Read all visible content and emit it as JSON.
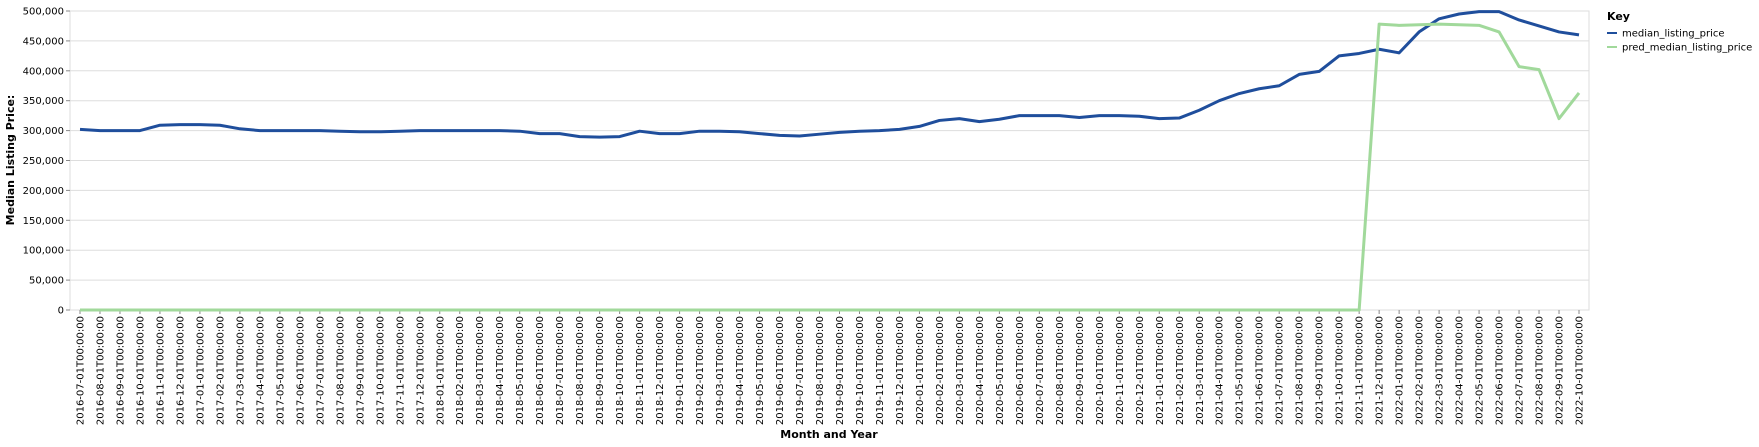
{
  "chart_data": {
    "type": "line",
    "x_label": "Month and Year",
    "y_label": "Median Listing Price:",
    "legend_title": "Key",
    "legend": "right",
    "grid": true,
    "categories": [
      "2016-07-01T00:00:00",
      "2016-08-01T00:00:00",
      "2016-09-01T00:00:00",
      "2016-10-01T00:00:00",
      "2016-11-01T00:00:00",
      "2016-12-01T00:00:00",
      "2017-01-01T00:00:00",
      "2017-02-01T00:00:00",
      "2017-03-01T00:00:00",
      "2017-04-01T00:00:00",
      "2017-05-01T00:00:00",
      "2017-06-01T00:00:00",
      "2017-07-01T00:00:00",
      "2017-08-01T00:00:00",
      "2017-09-01T00:00:00",
      "2017-10-01T00:00:00",
      "2017-11-01T00:00:00",
      "2017-12-01T00:00:00",
      "2018-01-01T00:00:00",
      "2018-02-01T00:00:00",
      "2018-03-01T00:00:00",
      "2018-04-01T00:00:00",
      "2018-05-01T00:00:00",
      "2018-06-01T00:00:00",
      "2018-07-01T00:00:00",
      "2018-08-01T00:00:00",
      "2018-09-01T00:00:00",
      "2018-10-01T00:00:00",
      "2018-11-01T00:00:00",
      "2018-12-01T00:00:00",
      "2019-01-01T00:00:00",
      "2019-02-01T00:00:00",
      "2019-03-01T00:00:00",
      "2019-04-01T00:00:00",
      "2019-05-01T00:00:00",
      "2019-06-01T00:00:00",
      "2019-07-01T00:00:00",
      "2019-08-01T00:00:00",
      "2019-09-01T00:00:00",
      "2019-10-01T00:00:00",
      "2019-11-01T00:00:00",
      "2019-12-01T00:00:00",
      "2020-01-01T00:00:00",
      "2020-02-01T00:00:00",
      "2020-03-01T00:00:00",
      "2020-04-01T00:00:00",
      "2020-05-01T00:00:00",
      "2020-06-01T00:00:00",
      "2020-07-01T00:00:00",
      "2020-08-01T00:00:00",
      "2020-09-01T00:00:00",
      "2020-10-01T00:00:00",
      "2020-11-01T00:00:00",
      "2020-12-01T00:00:00",
      "2021-01-01T00:00:00",
      "2021-02-01T00:00:00",
      "2021-03-01T00:00:00",
      "2021-04-01T00:00:00",
      "2021-05-01T00:00:00",
      "2021-06-01T00:00:00",
      "2021-07-01T00:00:00",
      "2021-08-01T00:00:00",
      "2021-09-01T00:00:00",
      "2021-10-01T00:00:00",
      "2021-11-01T00:00:00",
      "2021-12-01T00:00:00",
      "2022-01-01T00:00:00",
      "2022-02-01T00:00:00",
      "2022-03-01T00:00:00",
      "2022-04-01T00:00:00",
      "2022-05-01T00:00:00",
      "2022-06-01T00:00:00",
      "2022-07-01T00:00:00",
      "2022-08-01T00:00:00",
      "2022-09-01T00:00:00",
      "2022-10-01T00:00:00"
    ],
    "series": [
      {
        "name": "median_listing_price",
        "color": "#1f4e9c",
        "values": [
          302000,
          300000,
          300000,
          300000,
          309000,
          310000,
          310000,
          309000,
          303000,
          300000,
          300000,
          300000,
          300000,
          299000,
          298000,
          298000,
          299000,
          300000,
          300000,
          300000,
          300000,
          300000,
          299000,
          295000,
          295000,
          290000,
          289000,
          290000,
          299000,
          295000,
          295000,
          299000,
          299000,
          298000,
          295000,
          292000,
          291000,
          294000,
          297000,
          299000,
          300000,
          302000,
          307000,
          317000,
          320000,
          315000,
          319000,
          325000,
          325000,
          325000,
          322000,
          325000,
          325000,
          324000,
          320000,
          321000,
          334000,
          350000,
          362000,
          370000,
          375000,
          394000,
          399000,
          425000,
          429000,
          436000,
          430000,
          465000,
          487000,
          495000,
          499000,
          499000,
          485000,
          475000,
          465000,
          460000
        ]
      },
      {
        "name": "pred_median_listing_price",
        "color": "#a1d99b",
        "values": [
          0,
          0,
          0,
          0,
          0,
          0,
          0,
          0,
          0,
          0,
          0,
          0,
          0,
          0,
          0,
          0,
          0,
          0,
          0,
          0,
          0,
          0,
          0,
          0,
          0,
          0,
          0,
          0,
          0,
          0,
          0,
          0,
          0,
          0,
          0,
          0,
          0,
          0,
          0,
          0,
          0,
          0,
          0,
          0,
          0,
          0,
          0,
          0,
          0,
          0,
          0,
          0,
          0,
          0,
          0,
          0,
          0,
          0,
          0,
          0,
          0,
          0,
          0,
          0,
          0,
          478000,
          476000,
          477000,
          478000,
          477000,
          476000,
          465000,
          407000,
          402000,
          320000,
          363000
        ]
      }
    ],
    "ylim": [
      0,
      500000
    ],
    "yticks": [
      0,
      {
        "value": 50000,
        "label": "50,000"
      },
      {
        "value": 100000,
        "label": "100,000"
      },
      {
        "value": 150000,
        "label": "150,000"
      },
      {
        "value": 200000,
        "label": "200,000"
      },
      {
        "value": 250000,
        "label": "250,000"
      },
      {
        "value": 300000,
        "label": "300,000"
      },
      {
        "value": 350000,
        "label": "350,000"
      },
      {
        "value": 400000,
        "label": "400,000"
      },
      {
        "value": 450000,
        "label": "450,000"
      },
      {
        "value": 500000,
        "label": "500,000"
      }
    ]
  }
}
